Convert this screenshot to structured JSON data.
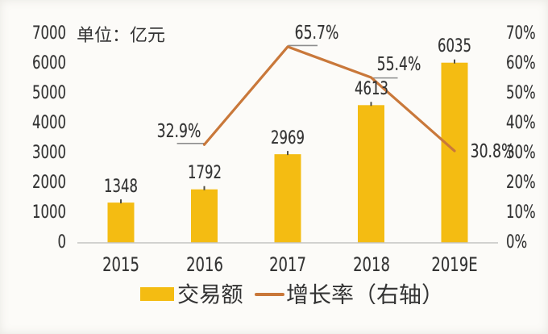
{
  "chart_data": {
    "type": "bar",
    "title": "",
    "unit_label": "单位：亿元",
    "categories": [
      "2015",
      "2016",
      "2017",
      "2018",
      "2019E"
    ],
    "series": [
      {
        "name": "交易额",
        "kind": "bar",
        "axis": "left",
        "values": [
          1348,
          1792,
          2969,
          4613,
          6035
        ],
        "labels": [
          "1348",
          "1792",
          "2969",
          "4613",
          "6035"
        ],
        "color": "#F4BC12"
      },
      {
        "name": "增长率（右轴）",
        "kind": "line",
        "axis": "right",
        "values": [
          null,
          32.9,
          65.7,
          55.4,
          30.8
        ],
        "labels": [
          null,
          "32.9%",
          "65.7%",
          "55.4%",
          "30.8%"
        ],
        "color": "#C9783A"
      }
    ],
    "left_axis": {
      "min": 0,
      "max": 7000,
      "step": 1000,
      "tick_labels": [
        "0",
        "1000",
        "2000",
        "3000",
        "4000",
        "5000",
        "6000",
        "7000"
      ]
    },
    "right_axis": {
      "min": 0,
      "max": 70,
      "step": 10,
      "tick_labels": [
        "0%",
        "10%",
        "20%",
        "30%",
        "40%",
        "50%",
        "60%",
        "70%"
      ]
    },
    "grid": false,
    "legend_position": "bottom",
    "legend": [
      {
        "label": "交易额",
        "swatch": "bar"
      },
      {
        "label": "增长率（右轴）",
        "swatch": "line"
      }
    ]
  },
  "colors": {
    "bar": "#F4BC12",
    "line": "#C9783A",
    "text": "#343434",
    "axis_line": "#c4c4c2",
    "leader_line": "#8d8d8d",
    "bar_top_tick": "#4f4e45",
    "background": "#FCFBF8"
  }
}
